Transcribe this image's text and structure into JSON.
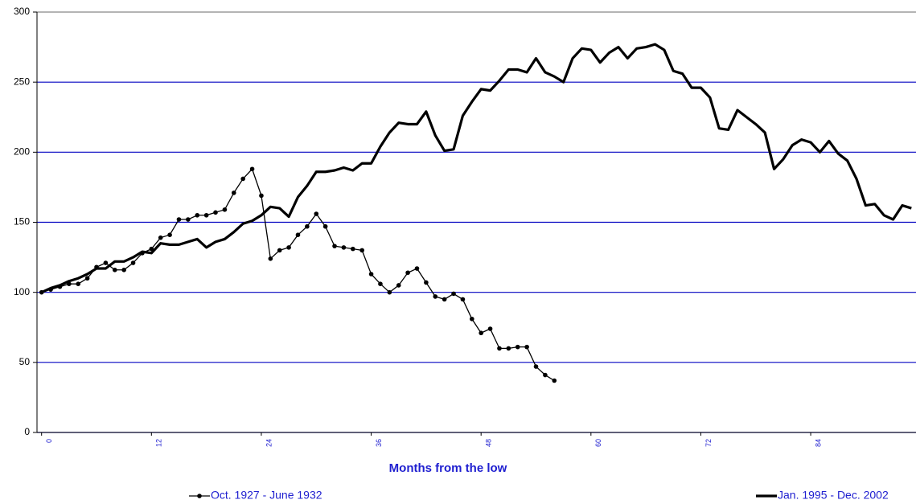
{
  "chart_data": {
    "type": "line",
    "x_label": "Months from the low",
    "x": [
      0,
      1,
      2,
      3,
      4,
      5,
      6,
      7,
      8,
      9,
      10,
      11,
      12,
      13,
      14,
      15,
      16,
      17,
      18,
      19,
      20,
      21,
      22,
      23,
      24,
      25,
      26,
      27,
      28,
      29,
      30,
      31,
      32,
      33,
      34,
      35,
      36,
      37,
      38,
      39,
      40,
      41,
      42,
      43,
      44,
      45,
      46,
      47,
      48,
      49,
      50,
      51,
      52,
      53,
      54,
      55,
      56,
      57,
      58,
      59,
      60,
      61,
      62,
      63,
      64,
      65,
      66,
      67,
      68,
      69,
      70,
      71,
      72,
      73,
      74,
      75,
      76,
      77,
      78,
      79,
      80,
      81,
      82,
      83,
      84,
      85,
      86,
      87,
      88,
      89,
      90,
      91,
      92,
      93,
      94,
      95
    ],
    "xlim": [
      -0.5,
      95.5
    ],
    "xticks": [
      0,
      12,
      24,
      36,
      48,
      60,
      72,
      84
    ],
    "ylim": [
      0,
      300
    ],
    "yticks": [
      0,
      50,
      100,
      150,
      200,
      250,
      300
    ],
    "grid": true,
    "grid_color": "#0000c0",
    "legend": "bottom",
    "series": [
      {
        "name": "Oct. 1927 - June 1932",
        "color": "#000000",
        "marker": "circle",
        "values": [
          100,
          102,
          104,
          106,
          106,
          110,
          118,
          121,
          116,
          116,
          121,
          128,
          131,
          139,
          141,
          152,
          152,
          155,
          155,
          157,
          159,
          171,
          181,
          188,
          169,
          124,
          130,
          132,
          141,
          147,
          156,
          147,
          133,
          132,
          131,
          130,
          113,
          106,
          100,
          105,
          114,
          117,
          107,
          97,
          95,
          99,
          95,
          81,
          71,
          74,
          60,
          60,
          61,
          61,
          47,
          41,
          37,
          null,
          null,
          null,
          null,
          null,
          null,
          null,
          null,
          null,
          null,
          null,
          null,
          null,
          null,
          null,
          null,
          null,
          null,
          null,
          null,
          null,
          null,
          null,
          null,
          null,
          null,
          null,
          null,
          null,
          null,
          null,
          null,
          null,
          null,
          null,
          null,
          null,
          null,
          null
        ]
      },
      {
        "name": "Jan. 1995 - Dec. 2002",
        "color": "#000000",
        "values": [
          100,
          103,
          105,
          108,
          110,
          113,
          117,
          117,
          122,
          122,
          125,
          129,
          128,
          135,
          134,
          134,
          136,
          138,
          132,
          136,
          138,
          143,
          149,
          151,
          155,
          161,
          160,
          154,
          168,
          176,
          186,
          186,
          187,
          189,
          187,
          192,
          192,
          204,
          214,
          221,
          220,
          220,
          229,
          212,
          201,
          202,
          226,
          236,
          245,
          244,
          251,
          259,
          259,
          257,
          267,
          257,
          254,
          250,
          267,
          274,
          273,
          264,
          271,
          275,
          267,
          274,
          275,
          277,
          273,
          258,
          256,
          246,
          246,
          239,
          217,
          216,
          230,
          225,
          220,
          214,
          188,
          195,
          205,
          209,
          207,
          200,
          208,
          199,
          194,
          181,
          162,
          163,
          155,
          152,
          162,
          160
        ]
      }
    ]
  }
}
